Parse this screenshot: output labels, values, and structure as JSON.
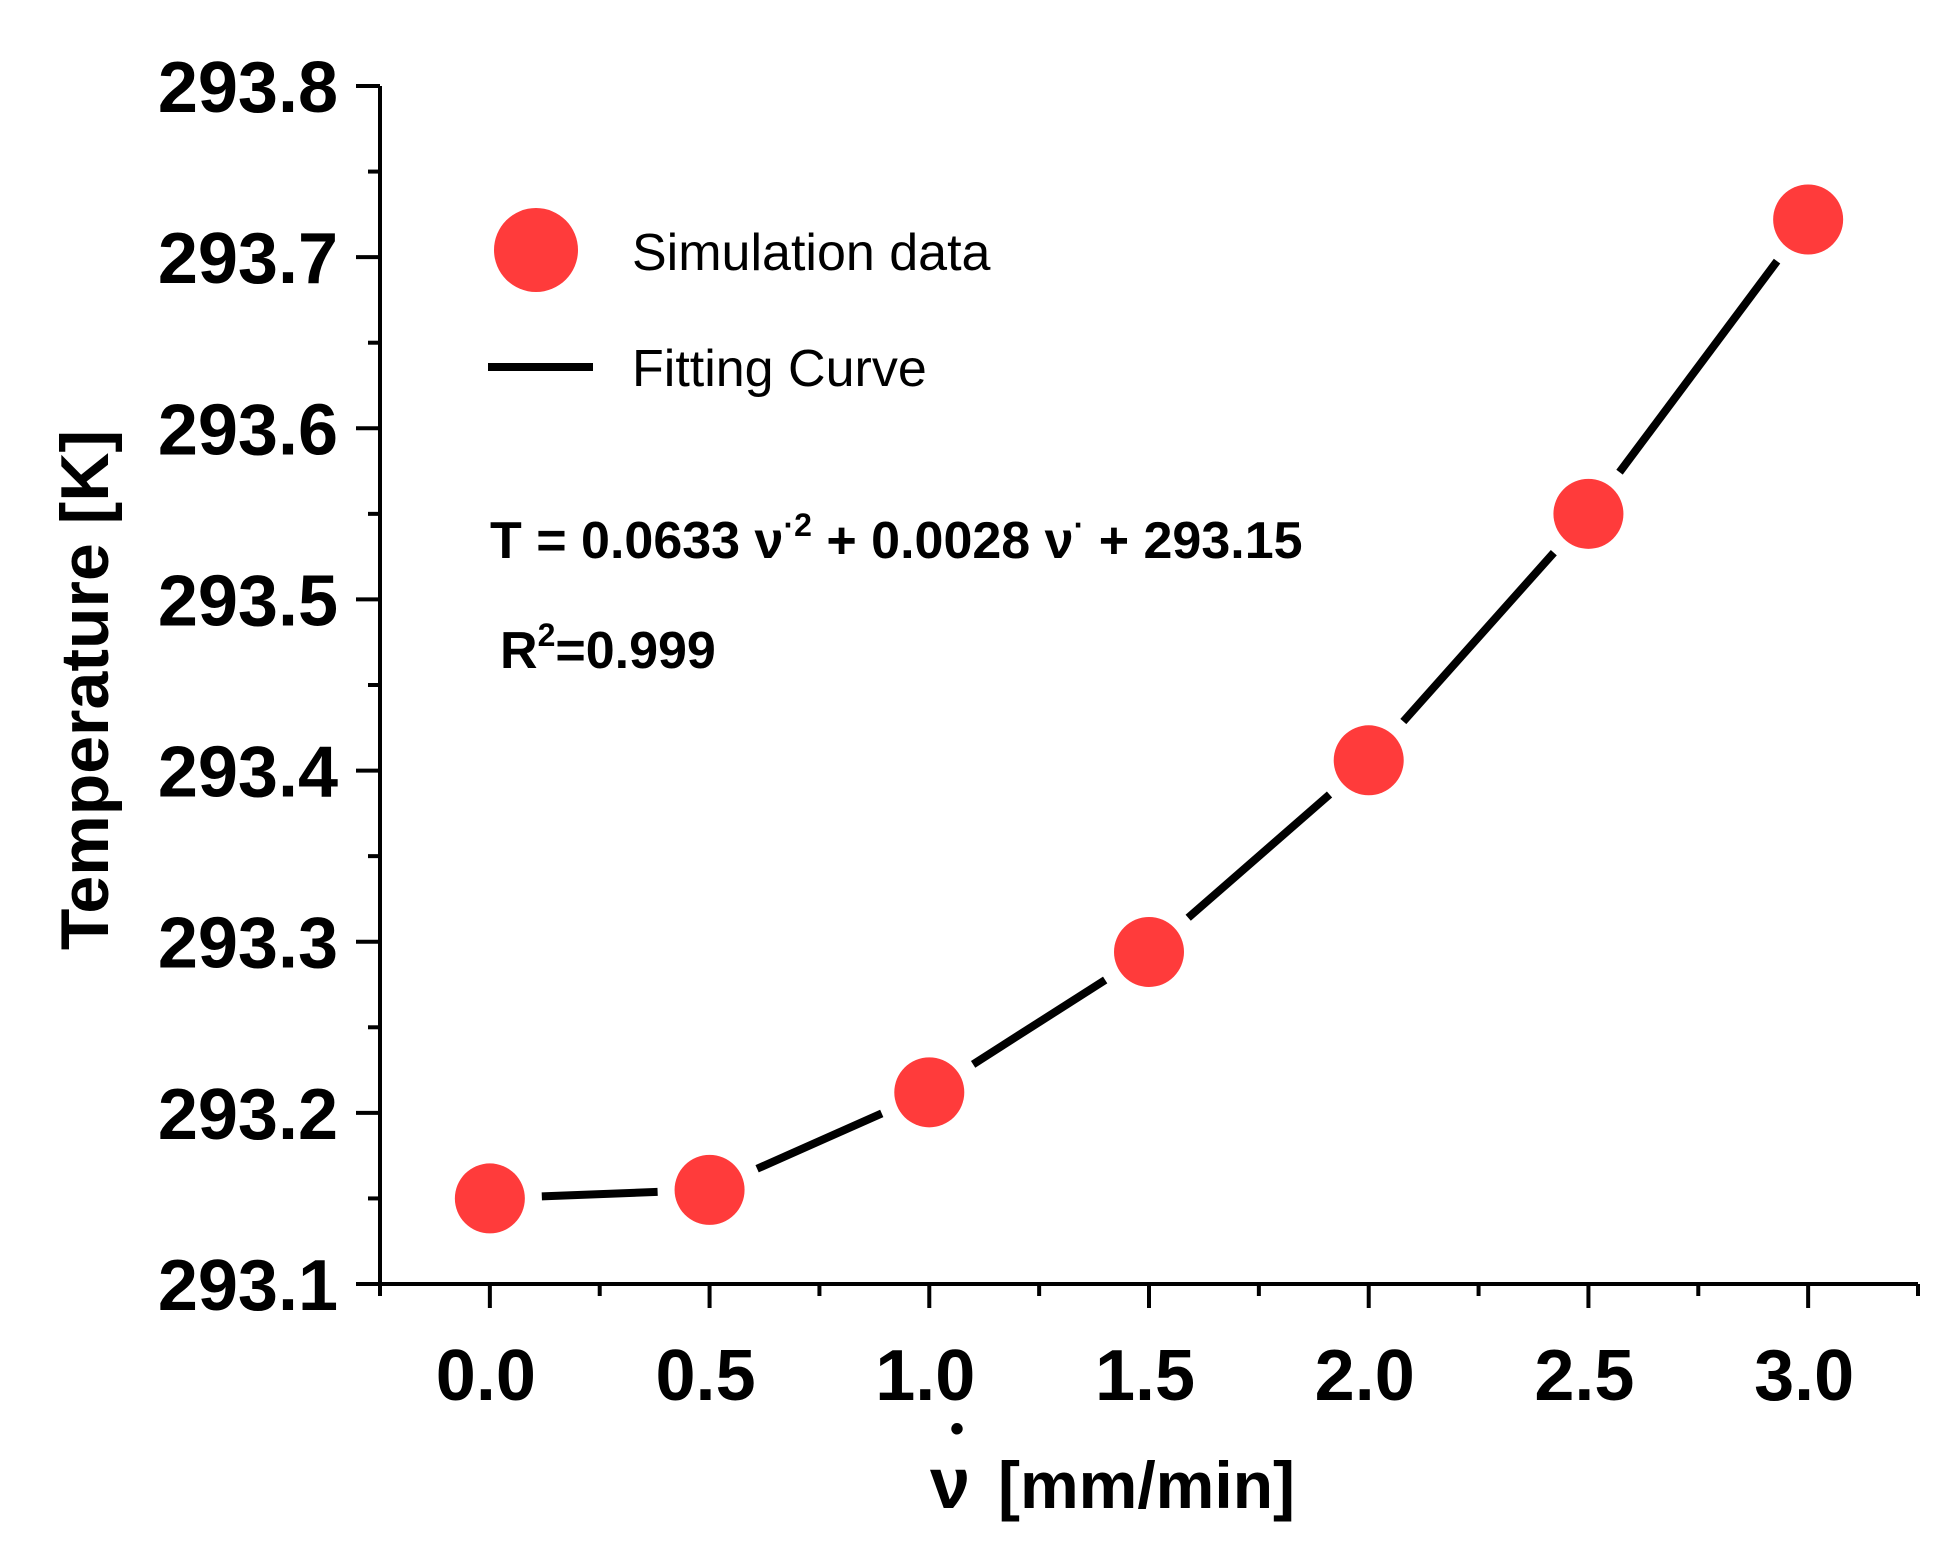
{
  "chart_data": {
    "type": "scatter",
    "title": "",
    "xlabel": {
      "symbol": "ν",
      "dot": "•",
      "unit": "[mm/min]"
    },
    "ylabel": "Temperature [K]",
    "xlim": [
      -0.25,
      3.25
    ],
    "ylim": [
      293.1,
      293.8
    ],
    "x_ticks": [
      0.0,
      0.5,
      1.0,
      1.5,
      2.0,
      2.5,
      3.0
    ],
    "x_tick_labels": [
      "0.0",
      "0.5",
      "1.0",
      "1.5",
      "2.0",
      "2.5",
      "3.0"
    ],
    "y_ticks": [
      293.1,
      293.2,
      293.3,
      293.4,
      293.5,
      293.6,
      293.7,
      293.8
    ],
    "y_tick_labels": [
      "293.1",
      "293.2",
      "293.3",
      "293.4",
      "293.5",
      "293.6",
      "293.7",
      "293.8"
    ],
    "series": [
      {
        "name": "Simulation data",
        "kind": "scatter",
        "color": "#ff3b3b",
        "x": [
          0.0,
          0.5,
          1.0,
          1.5,
          2.0,
          2.5,
          3.0
        ],
        "y": [
          293.15,
          293.155,
          293.212,
          293.294,
          293.406,
          293.55,
          293.722
        ]
      },
      {
        "name": "Fitting Curve",
        "kind": "line",
        "color": "#000000",
        "x": [
          0.0,
          0.5,
          1.0,
          1.5,
          2.0,
          2.5,
          3.0
        ],
        "y": [
          293.15,
          293.155,
          293.212,
          293.294,
          293.406,
          293.55,
          293.722
        ]
      }
    ],
    "legend": {
      "position": "top-left",
      "entries": [
        "Simulation data",
        "Fitting Curve"
      ]
    },
    "annotations": {
      "equation": {
        "prefix": "T = 0.0633 ν",
        "sup1": "·2",
        "middle": " + 0.0028 ν",
        "sup2": "·",
        "suffix": " + 293.15"
      },
      "r2": {
        "prefix": "R",
        "sup": "2",
        "suffix": "=0.999"
      }
    },
    "grid": false
  }
}
